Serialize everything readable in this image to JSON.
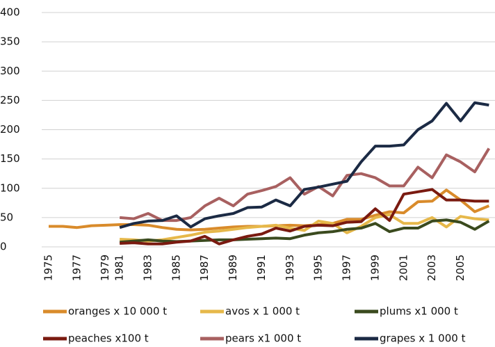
{
  "chart_data": {
    "type": "line",
    "categories": [
      "1975",
      null,
      "1977",
      null,
      "1979",
      "1981",
      null,
      "1983",
      null,
      "1985",
      null,
      "1987",
      null,
      "1989",
      null,
      "1991",
      null,
      "1993",
      null,
      "1995",
      null,
      "1997",
      null,
      "1999",
      null,
      "2001",
      null,
      "2003",
      null,
      "2005",
      null,
      null
    ],
    "series": [
      {
        "name": "oranges x 10 000 t",
        "color": "#d98b2b",
        "values": [
          35,
          35,
          33,
          36,
          37,
          38,
          38,
          37,
          33,
          30,
          29,
          30,
          32,
          34,
          35,
          35,
          36,
          37,
          36,
          38,
          40,
          47,
          47,
          54,
          60,
          58,
          77,
          78,
          97,
          80,
          60,
          70
        ]
      },
      {
        "name": "avos x 1 000 t",
        "color": "#e6b84a",
        "values": [
          null,
          null,
          null,
          null,
          null,
          13,
          12,
          10,
          12,
          16,
          20,
          25,
          27,
          30,
          33,
          35,
          37,
          32,
          28,
          44,
          40,
          24,
          35,
          50,
          55,
          40,
          40,
          50,
          34,
          52,
          48,
          46
        ]
      },
      {
        "name": "plums x1 000 t",
        "color": "#3a4a1e",
        "values": [
          null,
          null,
          null,
          null,
          null,
          8,
          10,
          12,
          10,
          9,
          10,
          11,
          12,
          12,
          13,
          14,
          15,
          14,
          20,
          24,
          26,
          30,
          32,
          40,
          26,
          32,
          32,
          44,
          46,
          42,
          30,
          44
        ]
      },
      {
        "name": "peaches x100 t",
        "color": "#7a1a10",
        "values": [
          null,
          null,
          null,
          null,
          null,
          6,
          7,
          5,
          5,
          8,
          10,
          18,
          5,
          12,
          18,
          22,
          32,
          27,
          35,
          37,
          36,
          42,
          43,
          65,
          45,
          90,
          94,
          98,
          80,
          80,
          78,
          78
        ]
      },
      {
        "name": "pears x1 000 t",
        "color": "#a86060",
        "values": [
          null,
          null,
          null,
          null,
          null,
          50,
          48,
          57,
          45,
          45,
          50,
          70,
          83,
          70,
          90,
          96,
          103,
          118,
          90,
          103,
          87,
          122,
          125,
          118,
          104,
          104,
          136,
          118,
          157,
          145,
          128,
          168
        ]
      },
      {
        "name": "grapes x 1 000 t",
        "color": "#1b2a44",
        "values": [
          null,
          null,
          null,
          null,
          null,
          33,
          40,
          44,
          45,
          53,
          34,
          48,
          53,
          57,
          67,
          68,
          80,
          70,
          98,
          102,
          107,
          112,
          145,
          172,
          172,
          174,
          200,
          215,
          245,
          215,
          246,
          242
        ]
      }
    ],
    "ylim": [
      0,
      400
    ],
    "yticks": [
      0,
      50,
      100,
      150,
      200,
      250,
      300,
      350,
      400
    ],
    "grid": true,
    "legend": "bottom"
  }
}
